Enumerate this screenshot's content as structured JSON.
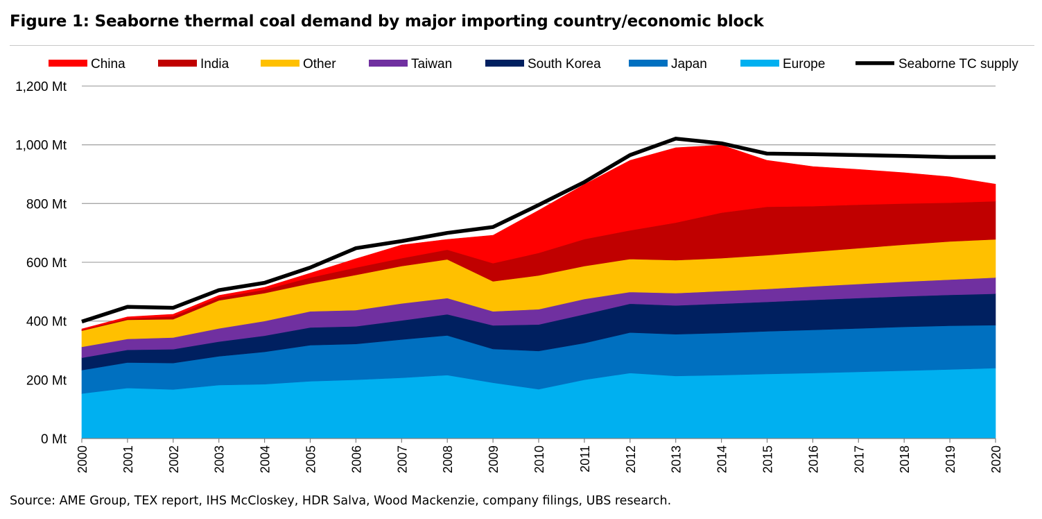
{
  "title": "Figure 1: Seaborne thermal coal demand by major importing country/economic block",
  "source": "Source:  AME Group, TEX report, IHS McCloskey, HDR Salva, Wood Mackenzie, company filings, UBS research.",
  "chart_data": {
    "type": "area",
    "stacked": true,
    "x": [
      "2000",
      "2001",
      "2002",
      "2003",
      "2004",
      "2005",
      "2006",
      "2007",
      "2008",
      "2009",
      "2010",
      "2011",
      "2012",
      "2013",
      "2014",
      "2015",
      "2016",
      "2017",
      "2018",
      "2019",
      "2020"
    ],
    "y_ticks": [
      "0 Mt",
      "200 Mt",
      "400 Mt",
      "600 Mt",
      "800 Mt",
      "1,000 Mt",
      "1,200 Mt"
    ],
    "ylim": [
      0,
      1200
    ],
    "grid": true,
    "legend_position": "top",
    "series": [
      {
        "name": "Europe",
        "color": "#00b0f0",
        "values": [
          153,
          172,
          167,
          182,
          185,
          195,
          200,
          207,
          216,
          190,
          168,
          200,
          223,
          213,
          216,
          220,
          223,
          227,
          231,
          235,
          240
        ]
      },
      {
        "name": "Japan",
        "color": "#0070c0",
        "values": [
          80,
          87,
          90,
          98,
          110,
          123,
          122,
          130,
          135,
          115,
          130,
          125,
          138,
          142,
          143,
          145,
          147,
          148,
          149,
          149,
          146
        ]
      },
      {
        "name": "South Korea",
        "color": "#002060",
        "values": [
          42,
          43,
          47,
          50,
          55,
          60,
          60,
          65,
          72,
          80,
          90,
          98,
          98,
          98,
          100,
          100,
          102,
          103,
          104,
          105,
          107
        ]
      },
      {
        "name": "Taiwan",
        "color": "#7030a0",
        "values": [
          37,
          37,
          40,
          45,
          50,
          55,
          55,
          58,
          55,
          48,
          52,
          52,
          40,
          42,
          43,
          44,
          46,
          48,
          50,
          52,
          55
        ]
      },
      {
        "name": "Other",
        "color": "#ffc000",
        "values": [
          55,
          65,
          62,
          95,
          95,
          95,
          120,
          127,
          132,
          102,
          115,
          112,
          112,
          112,
          112,
          115,
          118,
          122,
          126,
          130,
          130
        ]
      },
      {
        "name": "India",
        "color": "#c00000",
        "values": [
          3,
          5,
          10,
          10,
          12,
          20,
          25,
          27,
          33,
          62,
          77,
          92,
          98,
          128,
          155,
          165,
          155,
          148,
          140,
          132,
          130
        ]
      },
      {
        "name": "China",
        "color": "#ff0000",
        "values": [
          3,
          5,
          7,
          7,
          8,
          15,
          30,
          45,
          35,
          95,
          145,
          186,
          238,
          255,
          230,
          158,
          135,
          120,
          105,
          88,
          58
        ]
      }
    ],
    "line_series": {
      "name": "Seaborne TC supply",
      "color": "#000000",
      "values": [
        398,
        448,
        445,
        505,
        530,
        582,
        648,
        672,
        700,
        720,
        795,
        873,
        965,
        1021,
        1005,
        970,
        968,
        965,
        962,
        958,
        958
      ]
    }
  }
}
